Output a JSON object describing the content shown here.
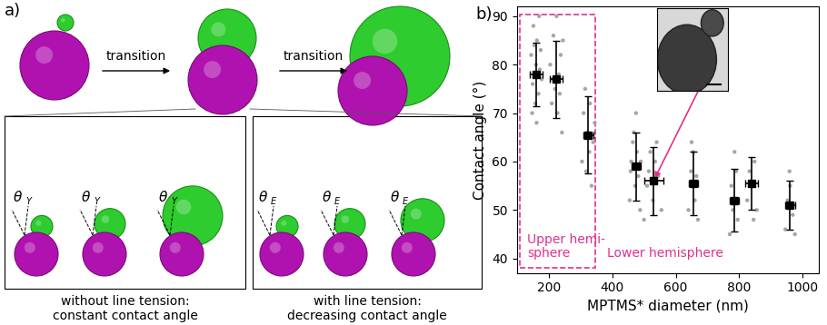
{
  "panel_a": {
    "label": "a)",
    "transitions": [
      "transition",
      "transition"
    ],
    "boxes": [
      {
        "caption": "without line tension:\nconstant contact angle",
        "angle_symbol": "θ",
        "angle_subscript": "Y"
      },
      {
        "caption": "with line tension:\ndecreasing contact angle",
        "angle_symbol": "θ",
        "angle_subscript": "E"
      }
    ]
  },
  "chart_data": {
    "type": "scatter",
    "panel_label": "b)",
    "x_label": "MPTMS* diameter (nm)",
    "y_label": "Contact angle (°)",
    "xlim": [
      100,
      1050
    ],
    "xticks": [
      200,
      400,
      600,
      800,
      1000
    ],
    "ylim": [
      37,
      92
    ],
    "yticks": [
      40,
      50,
      60,
      70,
      80,
      90
    ],
    "grid": false,
    "annotations": [
      "Upper hemi-\nsphere",
      "Lower hemisphere"
    ],
    "series": [
      {
        "type": "scatter",
        "color": "#a6a6a6",
        "marker": "circle",
        "x": [
          145,
          150,
          152,
          158,
          160,
          163,
          165,
          168,
          170,
          172,
          148,
          175,
          155,
          162,
          178,
          205,
          210,
          215,
          220,
          225,
          228,
          232,
          238,
          242,
          245,
          212,
          235,
          305,
          310,
          318,
          322,
          330,
          335,
          340,
          345,
          315,
          328,
          455,
          460,
          468,
          472,
          478,
          482,
          488,
          465,
          490,
          475,
          458,
          500,
          510,
          520,
          528,
          535,
          545,
          555,
          540,
          515,
          640,
          648,
          655,
          660,
          665,
          670,
          650,
          770,
          775,
          780,
          790,
          795,
          785,
          825,
          832,
          840,
          848,
          855,
          845,
          945,
          952,
          960,
          968,
          975,
          958
        ],
        "values": [
          82,
          76,
          88,
          72,
          80,
          85,
          78,
          74,
          90,
          79,
          70,
          83,
          84,
          68,
          77,
          80,
          72,
          86,
          75,
          90,
          70,
          78,
          82,
          66,
          85,
          77,
          74,
          60,
          70,
          58,
          66,
          72,
          55,
          64,
          68,
          75,
          62,
          52,
          60,
          66,
          55,
          62,
          57,
          50,
          64,
          60,
          70,
          58,
          48,
          55,
          62,
          52,
          60,
          57,
          50,
          64,
          58,
          50,
          58,
          62,
          52,
          57,
          48,
          64,
          45,
          55,
          50,
          58,
          48,
          62,
          52,
          58,
          55,
          60,
          50,
          48,
          46,
          52,
          55,
          49,
          45,
          58
        ]
      },
      {
        "type": "errorbar",
        "color": "#000000",
        "marker": "square",
        "x": [
          160,
          225,
          325,
          475,
          530,
          655,
          785,
          840,
          960
        ],
        "values": [
          78,
          77,
          65.5,
          59,
          56,
          55.5,
          52,
          55.5,
          51
        ],
        "x_error": [
          20,
          20,
          15,
          15,
          30,
          15,
          15,
          20,
          15
        ],
        "y_error": [
          6.5,
          8,
          8,
          7,
          7,
          6.5,
          6.5,
          5.5,
          5
        ]
      }
    ]
  }
}
